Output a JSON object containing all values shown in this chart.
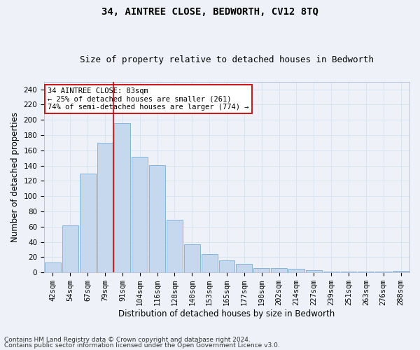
{
  "title": "34, AINTREE CLOSE, BEDWORTH, CV12 8TQ",
  "subtitle": "Size of property relative to detached houses in Bedworth",
  "xlabel": "Distribution of detached houses by size in Bedworth",
  "ylabel": "Number of detached properties",
  "categories": [
    "42sqm",
    "54sqm",
    "67sqm",
    "79sqm",
    "91sqm",
    "104sqm",
    "116sqm",
    "128sqm",
    "140sqm",
    "153sqm",
    "165sqm",
    "177sqm",
    "190sqm",
    "202sqm",
    "214sqm",
    "227sqm",
    "239sqm",
    "251sqm",
    "263sqm",
    "276sqm",
    "288sqm"
  ],
  "values": [
    13,
    62,
    130,
    170,
    196,
    152,
    141,
    69,
    37,
    24,
    16,
    11,
    6,
    6,
    5,
    3,
    1,
    1,
    1,
    1,
    2
  ],
  "bar_color": "#c5d8ee",
  "bar_edge_color": "#7aadd4",
  "grid_color": "#d8e4f0",
  "annotation_line1": "34 AINTREE CLOSE: 83sqm",
  "annotation_line2": "← 25% of detached houses are smaller (261)",
  "annotation_line3": "74% of semi-detached houses are larger (774) →",
  "annotation_box_color": "#ffffff",
  "annotation_box_edge_color": "#cc0000",
  "vline_color": "#cc0000",
  "ylim": [
    0,
    250
  ],
  "yticks": [
    0,
    20,
    40,
    60,
    80,
    100,
    120,
    140,
    160,
    180,
    200,
    220,
    240
  ],
  "footer_line1": "Contains HM Land Registry data © Crown copyright and database right 2024.",
  "footer_line2": "Contains public sector information licensed under the Open Government Licence v3.0.",
  "title_fontsize": 10,
  "subtitle_fontsize": 9,
  "xlabel_fontsize": 8.5,
  "ylabel_fontsize": 8.5,
  "tick_fontsize": 7.5,
  "footer_fontsize": 6.5,
  "annotation_fontsize": 7.5,
  "background_color": "#eef2f8"
}
